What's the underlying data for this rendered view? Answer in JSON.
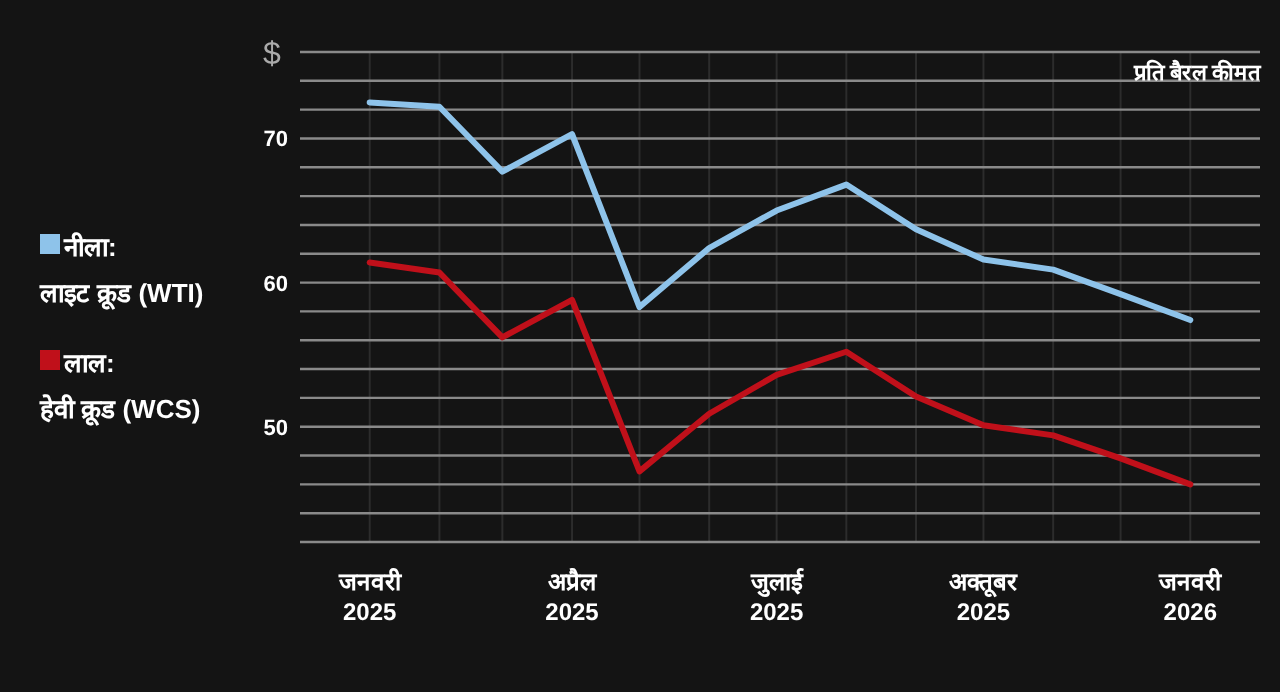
{
  "chart_data": {
    "type": "line",
    "ylabel": "$",
    "annotations": [
      "प्रति बैरल कीमत"
    ],
    "x": [
      "2025-01",
      "2025-02",
      "2025-03",
      "2025-04",
      "2025-05",
      "2025-06",
      "2025-07",
      "2025-08",
      "2025-09",
      "2025-10",
      "2025-11",
      "2025-12",
      "2026-01"
    ],
    "series": [
      {
        "name": "नीला:\nलाइट क्रूड (WTI)",
        "color": "#8ec3ea",
        "values": [
          72.5,
          72.2,
          67.7,
          70.3,
          58.3,
          62.4,
          65.0,
          66.8,
          63.7,
          61.6,
          60.9,
          59.2,
          57.4
        ]
      },
      {
        "name": "लाल:\nहेवी क्रूड (WCS)",
        "color": "#c0101a",
        "values": [
          61.4,
          60.7,
          56.2,
          58.8,
          46.9,
          50.9,
          53.6,
          55.2,
          52.1,
          50.1,
          49.4,
          47.8,
          46.0
        ]
      }
    ],
    "xlim": [
      "2024-12",
      "2026-02"
    ],
    "xticks": [
      {
        "value": "2025-01",
        "label": "जनवरी\n2025"
      },
      {
        "value": "2025-02",
        "label": null
      },
      {
        "value": "2025-03",
        "label": null
      },
      {
        "value": "2025-04",
        "label": "अप्रैल\n2025"
      },
      {
        "value": "2025-05",
        "label": null
      },
      {
        "value": "2025-06",
        "label": null
      },
      {
        "value": "2025-07",
        "label": "जुलाई\n2025"
      },
      {
        "value": "2025-08",
        "label": null
      },
      {
        "value": "2025-09",
        "label": null
      },
      {
        "value": "2025-10",
        "label": "अक्तूबर\n2025"
      },
      {
        "value": "2025-11",
        "label": null
      },
      {
        "value": "2025-12",
        "label": null
      },
      {
        "value": "2026-01",
        "label": "जनवरी\n2026"
      }
    ],
    "ylim": [
      42,
      76
    ],
    "yticks": [
      {
        "value": 42,
        "label": null
      },
      {
        "value": 44,
        "label": null
      },
      {
        "value": 46,
        "label": null
      },
      {
        "value": 48,
        "label": null
      },
      50,
      {
        "value": 52,
        "label": null
      },
      {
        "value": 54,
        "label": null
      },
      {
        "value": 56,
        "label": null
      },
      {
        "value": 58,
        "label": null
      },
      60,
      {
        "value": 62,
        "label": null
      },
      {
        "value": 64,
        "label": null
      },
      {
        "value": 66,
        "label": null
      },
      {
        "value": 68,
        "label": null
      },
      70,
      {
        "value": 72,
        "label": null
      },
      {
        "value": 74,
        "label": null
      },
      {
        "value": 76,
        "label": null
      }
    ],
    "grid": true,
    "legend": "left",
    "marker": "none",
    "line_style": "solid"
  }
}
